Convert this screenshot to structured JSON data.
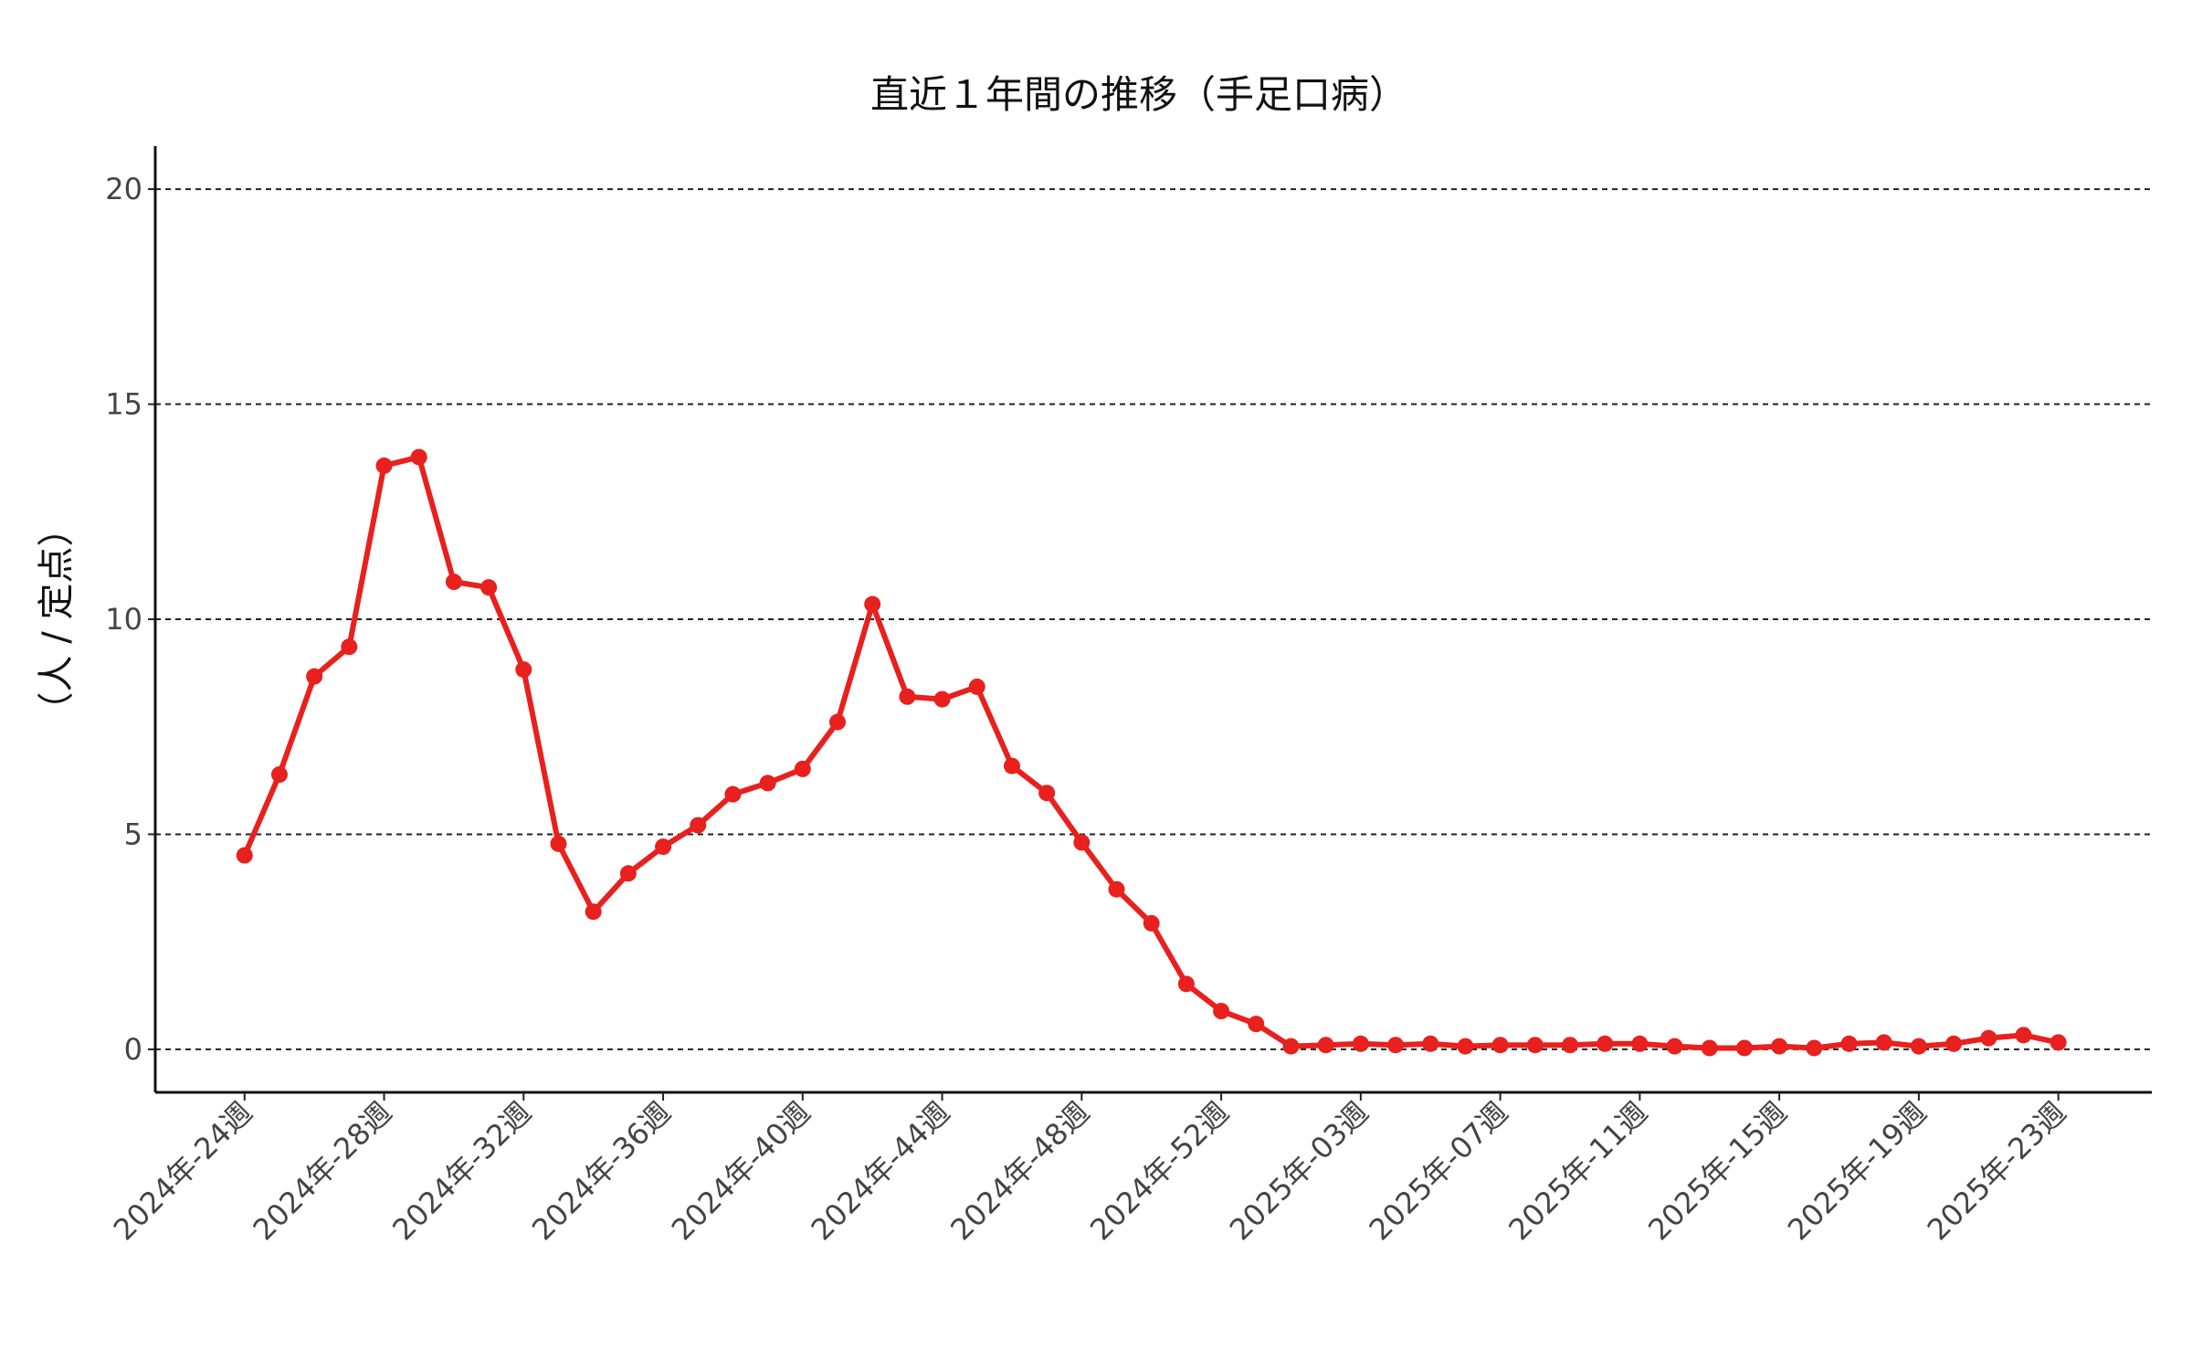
{
  "chart_data": {
    "type": "line",
    "title": "直近１年間の推移（手足口病）",
    "y_label": "（人 / 定点）",
    "categories": [
      "2024年-24週",
      null,
      null,
      null,
      "2024年-28週",
      null,
      null,
      null,
      "2024年-32週",
      null,
      null,
      null,
      "2024年-36週",
      null,
      null,
      null,
      "2024年-40週",
      null,
      null,
      null,
      "2024年-44週",
      null,
      null,
      null,
      "2024年-48週",
      null,
      null,
      null,
      "2024年-52週",
      null,
      null,
      null,
      "2025年-03週",
      null,
      null,
      null,
      "2025年-07週",
      null,
      null,
      null,
      "2025年-11週",
      null,
      null,
      null,
      "2025年-15週",
      null,
      null,
      null,
      "2025年-19週",
      null,
      null,
      null,
      "2025年-23週"
    ],
    "series": [
      {
        "name": "手足口病",
        "color": "#e8201e",
        "values": [
          4.51,
          6.39,
          8.67,
          9.36,
          13.57,
          13.77,
          10.87,
          10.74,
          8.83,
          4.78,
          3.2,
          4.09,
          4.71,
          5.21,
          5.93,
          6.19,
          6.52,
          7.61,
          10.35,
          8.2,
          8.14,
          8.43,
          6.59,
          5.96,
          4.81,
          3.72,
          2.93,
          1.52,
          0.89,
          0.59,
          0.07,
          0.1,
          0.13,
          0.1,
          0.13,
          0.07,
          0.1,
          0.1,
          0.1,
          0.13,
          0.13,
          0.07,
          0.03,
          0.03,
          0.07,
          0.03,
          0.13,
          0.16,
          0.07,
          0.13,
          0.26,
          0.33,
          0.16
        ]
      }
    ],
    "ylim": [
      -1,
      21
    ],
    "yticks": [
      0,
      5,
      10,
      15,
      20
    ],
    "grid": true
  }
}
